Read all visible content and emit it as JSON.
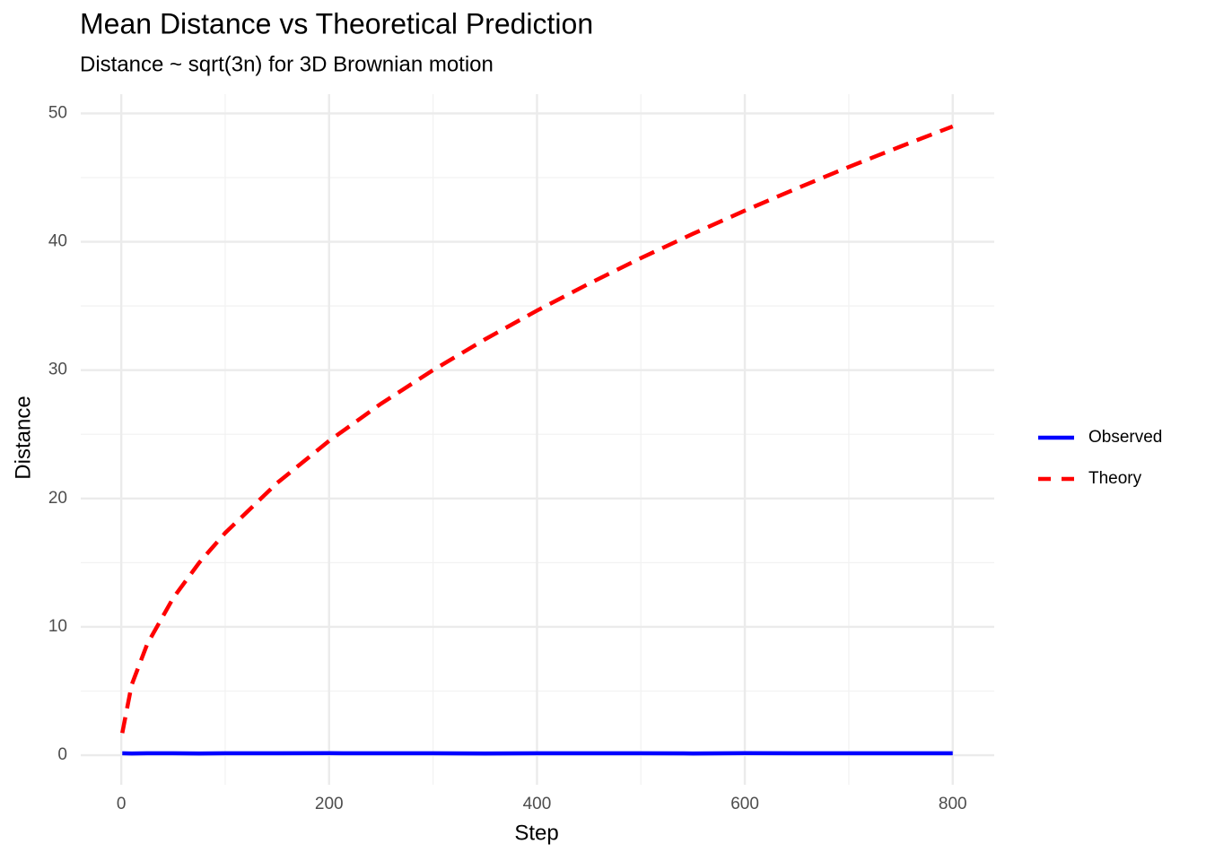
{
  "chart_data": {
    "type": "line",
    "title": "Mean Distance vs Theoretical Prediction",
    "subtitle": "Distance ~ sqrt(3n) for 3D Brownian motion",
    "x_label": "Step",
    "y_label": "Distance",
    "x": [
      1,
      10,
      25,
      50,
      75,
      100,
      150,
      200,
      250,
      300,
      350,
      400,
      450,
      500,
      550,
      600,
      650,
      700,
      750,
      800
    ],
    "series": [
      {
        "name": "Observed",
        "color": "#0000ff",
        "dash": "solid",
        "values": [
          0.15,
          0.14,
          0.15,
          0.15,
          0.14,
          0.15,
          0.15,
          0.16,
          0.15,
          0.15,
          0.14,
          0.15,
          0.15,
          0.15,
          0.14,
          0.16,
          0.15,
          0.15,
          0.15,
          0.15
        ]
      },
      {
        "name": "Theory",
        "color": "#ff0000",
        "dash": "dashed",
        "values": [
          1.73,
          5.48,
          8.66,
          12.25,
          15.0,
          17.32,
          21.21,
          24.49,
          27.39,
          30.0,
          32.4,
          34.64,
          36.74,
          38.73,
          40.62,
          42.43,
          44.16,
          45.83,
          47.43,
          48.99
        ]
      }
    ],
    "xlim": [
      -38.95,
      839.95
    ],
    "ylim": [
      -2.3,
      51.5
    ],
    "xticks": [
      0,
      200,
      400,
      600,
      800
    ],
    "yticks": [
      0,
      10,
      20,
      30,
      40,
      50
    ],
    "grid": true,
    "legend": "right"
  }
}
